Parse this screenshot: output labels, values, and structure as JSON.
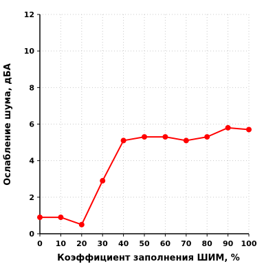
{
  "chart_data": {
    "type": "line",
    "title": "",
    "xlabel": "Коэффициент заполнения ШИМ, %",
    "ylabel": "Ослабление шума, дБА",
    "xlim": [
      0,
      100
    ],
    "ylim": [
      0,
      12
    ],
    "x_ticks": [
      "0",
      "10",
      "20",
      "30",
      "40",
      "50",
      "60",
      "70",
      "80",
      "90",
      "100"
    ],
    "y_ticks": [
      "0",
      "2",
      "4",
      "6",
      "8",
      "10",
      "12"
    ],
    "grid": true,
    "series": [
      {
        "color": "#ff0000",
        "x": [
          0,
          10,
          20,
          30,
          40,
          50,
          60,
          70,
          80,
          90,
          100
        ],
        "y": [
          0.9,
          0.9,
          0.5,
          2.9,
          5.1,
          5.3,
          5.3,
          5.1,
          5.3,
          5.8,
          5.7
        ]
      }
    ]
  }
}
